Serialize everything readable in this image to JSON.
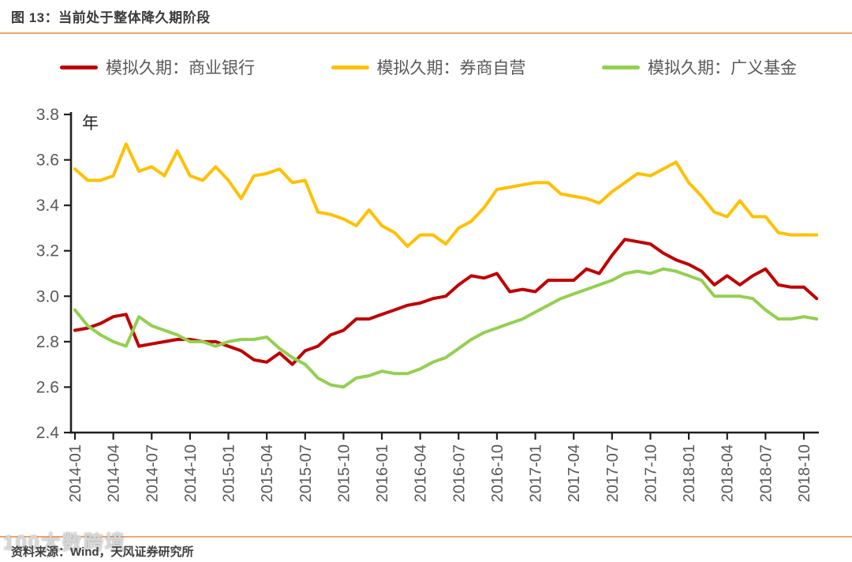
{
  "header": {
    "title": "图 13：当前处于整体降久期阶段"
  },
  "legend": [
    {
      "label": "模拟久期：商业银行",
      "color": "#c00000"
    },
    {
      "label": "模拟久期：券商自营",
      "color": "#ffc000"
    },
    {
      "label": "模拟久期：广义基金",
      "color": "#92d050"
    }
  ],
  "footer": {
    "source_label": "资料来源：Wind，天风证券研究所",
    "watermark": "100大数跨境"
  },
  "chart_data": {
    "type": "line",
    "title": "图 13：当前处于整体降久期阶段",
    "unit_label": "年",
    "xlabel": "",
    "ylabel": "年",
    "ylim": [
      2.4,
      3.8
    ],
    "grid": false,
    "legend_position": "top",
    "y_ticks": [
      3.8,
      3.6,
      3.4,
      3.2,
      3.0,
      2.8,
      2.6,
      2.4
    ],
    "x_tick_labels": [
      "2014-01",
      "2014-04",
      "2014-07",
      "2014-10",
      "2015-01",
      "2015-04",
      "2015-07",
      "2015-10",
      "2016-01",
      "2016-04",
      "2016-07",
      "2016-10",
      "2017-01",
      "2017-04",
      "2017-07",
      "2017-10",
      "2018-01",
      "2018-04",
      "2018-07",
      "2018-10"
    ],
    "x": [
      "2014-01",
      "2014-02",
      "2014-03",
      "2014-04",
      "2014-05",
      "2014-06",
      "2014-07",
      "2014-08",
      "2014-09",
      "2014-10",
      "2014-11",
      "2014-12",
      "2015-01",
      "2015-02",
      "2015-03",
      "2015-04",
      "2015-05",
      "2015-06",
      "2015-07",
      "2015-08",
      "2015-09",
      "2015-10",
      "2015-11",
      "2015-12",
      "2016-01",
      "2016-02",
      "2016-03",
      "2016-04",
      "2016-05",
      "2016-06",
      "2016-07",
      "2016-08",
      "2016-09",
      "2016-10",
      "2016-11",
      "2016-12",
      "2017-01",
      "2017-02",
      "2017-03",
      "2017-04",
      "2017-05",
      "2017-06",
      "2017-07",
      "2017-08",
      "2017-09",
      "2017-10",
      "2017-11",
      "2017-12",
      "2018-01",
      "2018-02",
      "2018-03",
      "2018-04",
      "2018-05",
      "2018-06",
      "2018-07",
      "2018-08",
      "2018-09",
      "2018-10",
      "2018-11"
    ],
    "series": [
      {
        "name": "模拟久期：商业银行",
        "color": "#c00000",
        "values": [
          2.85,
          2.86,
          2.88,
          2.91,
          2.92,
          2.78,
          2.79,
          2.8,
          2.81,
          2.81,
          2.8,
          2.8,
          2.78,
          2.76,
          2.72,
          2.71,
          2.75,
          2.7,
          2.76,
          2.78,
          2.83,
          2.85,
          2.9,
          2.9,
          2.92,
          2.94,
          2.96,
          2.97,
          2.99,
          3.0,
          3.05,
          3.09,
          3.08,
          3.1,
          3.02,
          3.03,
          3.02,
          3.07,
          3.07,
          3.07,
          3.12,
          3.1,
          3.18,
          3.25,
          3.24,
          3.23,
          3.19,
          3.16,
          3.14,
          3.11,
          3.05,
          3.09,
          3.05,
          3.09,
          3.12,
          3.05,
          3.04,
          3.04,
          2.99
        ]
      },
      {
        "name": "模拟久期：券商自营",
        "color": "#ffc000",
        "values": [
          3.56,
          3.51,
          3.51,
          3.53,
          3.67,
          3.55,
          3.57,
          3.53,
          3.64,
          3.53,
          3.51,
          3.57,
          3.51,
          3.43,
          3.53,
          3.54,
          3.56,
          3.5,
          3.51,
          3.37,
          3.36,
          3.34,
          3.31,
          3.38,
          3.31,
          3.28,
          3.22,
          3.27,
          3.27,
          3.23,
          3.3,
          3.33,
          3.39,
          3.47,
          3.48,
          3.49,
          3.5,
          3.5,
          3.45,
          3.44,
          3.43,
          3.41,
          3.46,
          3.5,
          3.54,
          3.53,
          3.56,
          3.59,
          3.5,
          3.44,
          3.37,
          3.35,
          3.42,
          3.35,
          3.35,
          3.28,
          3.27,
          3.27,
          3.27
        ]
      },
      {
        "name": "模拟久期：广义基金",
        "color": "#92d050",
        "values": [
          2.94,
          2.87,
          2.83,
          2.8,
          2.78,
          2.91,
          2.87,
          2.85,
          2.83,
          2.8,
          2.8,
          2.78,
          2.8,
          2.81,
          2.81,
          2.82,
          2.77,
          2.73,
          2.7,
          2.64,
          2.61,
          2.6,
          2.64,
          2.65,
          2.67,
          2.66,
          2.66,
          2.68,
          2.71,
          2.73,
          2.77,
          2.81,
          2.84,
          2.86,
          2.88,
          2.9,
          2.93,
          2.96,
          2.99,
          3.01,
          3.03,
          3.05,
          3.07,
          3.1,
          3.11,
          3.1,
          3.12,
          3.11,
          3.09,
          3.07,
          3.0,
          3.0,
          3.0,
          2.99,
          2.94,
          2.9,
          2.9,
          2.91,
          2.9
        ]
      }
    ]
  }
}
